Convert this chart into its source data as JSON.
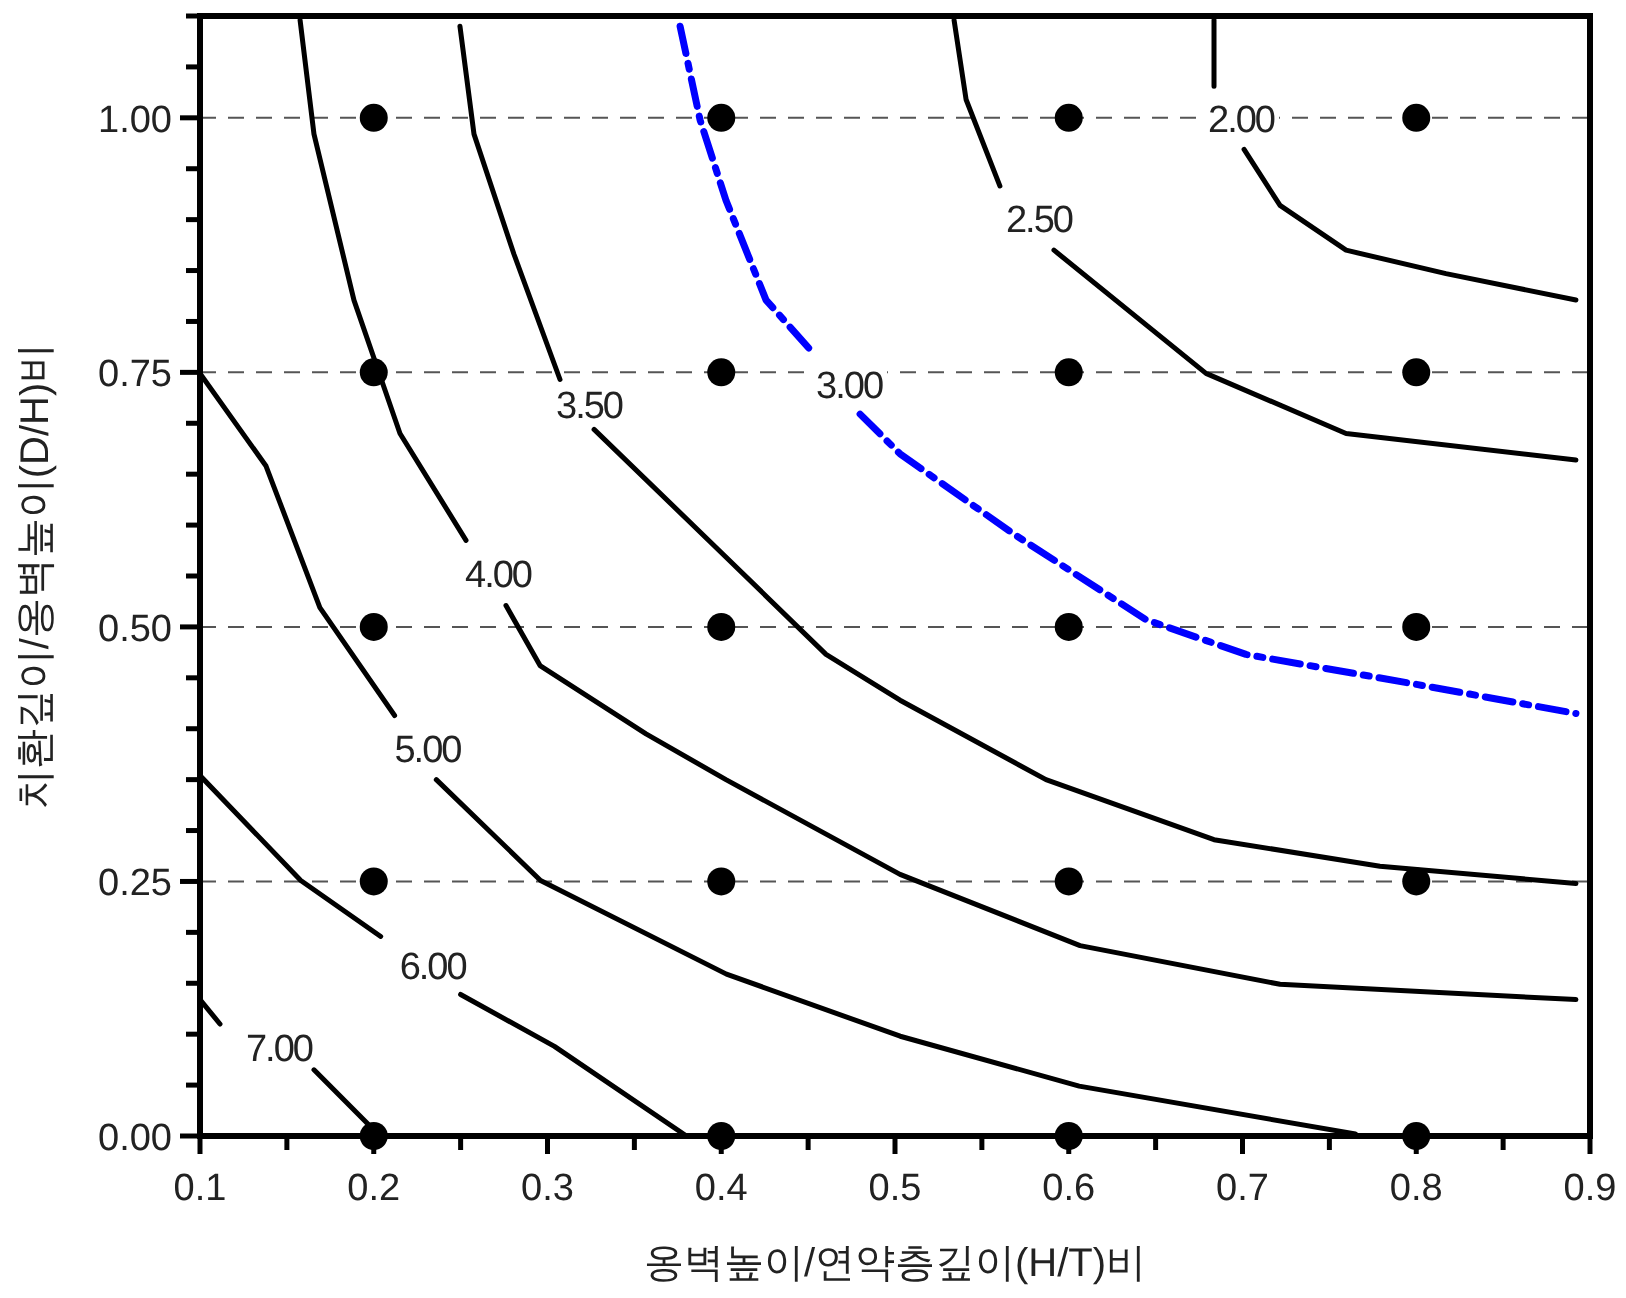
{
  "chart_data": {
    "type": "line",
    "xlabel": "옹벽높이/연약층깊이(H/T)비",
    "ylabel": "치환깊이/옹벽높이(D/H)비",
    "xlim": [
      0.1,
      0.9
    ],
    "ylim": [
      0,
      1.1
    ],
    "xticks": [
      {
        "value": 0.1,
        "label": "0.1"
      },
      {
        "value": 0.15,
        "label": null
      },
      {
        "value": 0.2,
        "label": "0.2"
      },
      {
        "value": 0.25,
        "label": null
      },
      {
        "value": 0.3,
        "label": "0.3"
      },
      {
        "value": 0.35,
        "label": null
      },
      {
        "value": 0.4,
        "label": "0.4"
      },
      {
        "value": 0.45,
        "label": null
      },
      {
        "value": 0.5,
        "label": "0.5"
      },
      {
        "value": 0.55,
        "label": null
      },
      {
        "value": 0.6,
        "label": "0.6"
      },
      {
        "value": 0.65,
        "label": null
      },
      {
        "value": 0.7,
        "label": "0.7"
      },
      {
        "value": 0.75,
        "label": null
      },
      {
        "value": 0.8,
        "label": "0.8"
      },
      {
        "value": 0.85,
        "label": null
      },
      {
        "value": 0.9,
        "label": "0.9"
      }
    ],
    "yticks": [
      {
        "value": 0,
        "label": "0.00"
      },
      {
        "value": 0.05,
        "label": null
      },
      {
        "value": 0.1,
        "label": null
      },
      {
        "value": 0.15,
        "label": null
      },
      {
        "value": 0.2,
        "label": null
      },
      {
        "value": 0.25,
        "label": "0.25"
      },
      {
        "value": 0.3,
        "label": null
      },
      {
        "value": 0.35,
        "label": null
      },
      {
        "value": 0.4,
        "label": null
      },
      {
        "value": 0.45,
        "label": null
      },
      {
        "value": 0.5,
        "label": "0.50"
      },
      {
        "value": 0.55,
        "label": null
      },
      {
        "value": 0.6,
        "label": null
      },
      {
        "value": 0.65,
        "label": null
      },
      {
        "value": 0.7,
        "label": null
      },
      {
        "value": 0.75,
        "label": "0.75"
      },
      {
        "value": 0.8,
        "label": null
      },
      {
        "value": 0.85,
        "label": null
      },
      {
        "value": 0.9,
        "label": null
      },
      {
        "value": 0.95,
        "label": null
      },
      {
        "value": 1.0,
        "label": "1.00"
      },
      {
        "value": 1.05,
        "label": null
      },
      {
        "value": 1.1,
        "label": null
      }
    ],
    "grid": "y",
    "series": [
      {
        "name": "2.00",
        "color": "#000000",
        "line_style": "solid",
        "x": [
          0.6836,
          0.6836,
          null,
          0.7009,
          0.7216,
          0.7596,
          0.8171,
          0.8919
        ],
        "values": [
          1.096,
          1.031,
          null,
          0.969,
          0.914,
          0.87,
          0.847,
          0.821
        ]
      },
      {
        "name": "2.50",
        "color": "#000000",
        "line_style": "solid",
        "x": [
          0.534,
          0.5409,
          0.5604,
          null,
          0.5915,
          0.679,
          0.7596,
          0.8919
        ],
        "values": [
          1.096,
          1.018,
          0.933,
          null,
          0.87,
          0.749,
          0.69,
          0.664
        ]
      },
      {
        "name": "3.00",
        "color": "#0000ff",
        "line_style": "dashdot",
        "x": [
          0.3763,
          0.3878,
          0.4027,
          0.4258,
          0.4534,
          null,
          0.4799,
          0.5029,
          0.5685,
          0.6445,
          0.702,
          0.7987,
          0.8919
        ],
        "values": [
          1.09,
          0.998,
          0.919,
          0.821,
          0.768,
          null,
          0.709,
          0.67,
          0.591,
          0.507,
          0.473,
          0.444,
          0.415
        ]
      },
      {
        "name": "3.50",
        "color": "#000000",
        "line_style": "solid",
        "x": [
          0.2496,
          0.2577,
          0.2807,
          0.3072,
          null,
          0.3268,
          0.3958,
          0.4603,
          0.5029,
          0.5869,
          0.6836,
          0.7791,
          0.8919
        ],
        "values": [
          1.09,
          0.984,
          0.866,
          0.743,
          null,
          0.694,
          0.58,
          0.473,
          0.428,
          0.35,
          0.291,
          0.265,
          0.248
        ]
      },
      {
        "name": "4.00",
        "color": "#000000",
        "line_style": "solid",
        "x": [
          0.1576,
          0.1656,
          0.1886,
          0.2151,
          0.2531,
          null,
          0.2761,
          0.2957,
          0.3567,
          0.4027,
          0.5029,
          0.6065,
          0.7216,
          0.8919
        ],
        "values": [
          1.096,
          0.984,
          0.821,
          0.69,
          0.585,
          null,
          0.521,
          0.462,
          0.395,
          0.35,
          0.257,
          0.187,
          0.149,
          0.134
        ]
      },
      {
        "name": "5.00",
        "color": "#000000",
        "line_style": "solid",
        "x": [
          0.1,
          0.138,
          0.169,
          0.212,
          null,
          0.236,
          0.296,
          0.403,
          0.503,
          0.606,
          0.765
        ],
        "values": [
          0.749,
          0.658,
          0.519,
          0.413,
          null,
          0.35,
          0.251,
          0.159,
          0.098,
          0.049,
          0.002
        ]
      },
      {
        "name": "6.00",
        "color": "#000000",
        "line_style": "solid",
        "x": [
          0.1,
          0.158,
          0.204,
          null,
          0.25,
          0.304,
          0.38
        ],
        "values": [
          0.354,
          0.251,
          0.196,
          null,
          0.139,
          0.088,
          0
        ]
      },
      {
        "name": "7.00",
        "color": "#000000",
        "line_style": "solid",
        "x": [
          0.1,
          0.1115,
          null,
          0.1656,
          0.2001
        ],
        "values": [
          0.134,
          0.11,
          null,
          0.065,
          0.006
        ]
      },
      {
        "type": "scatter",
        "color": "#000000",
        "marker": "circle",
        "x": [
          0.2,
          0.4,
          0.6,
          0.8,
          0.2,
          0.4,
          0.6,
          0.8,
          0.2,
          0.4,
          0.6,
          0.8,
          0.2,
          0.4,
          0.6,
          0.8,
          0.2,
          0.4,
          0.6,
          0.8
        ],
        "values": [
          1,
          1,
          1,
          1,
          0.75,
          0.75,
          0.75,
          0.75,
          0.5,
          0.5,
          0.5,
          0.5,
          0.25,
          0.25,
          0.25,
          0.25,
          0,
          0,
          0,
          0
        ]
      }
    ]
  }
}
